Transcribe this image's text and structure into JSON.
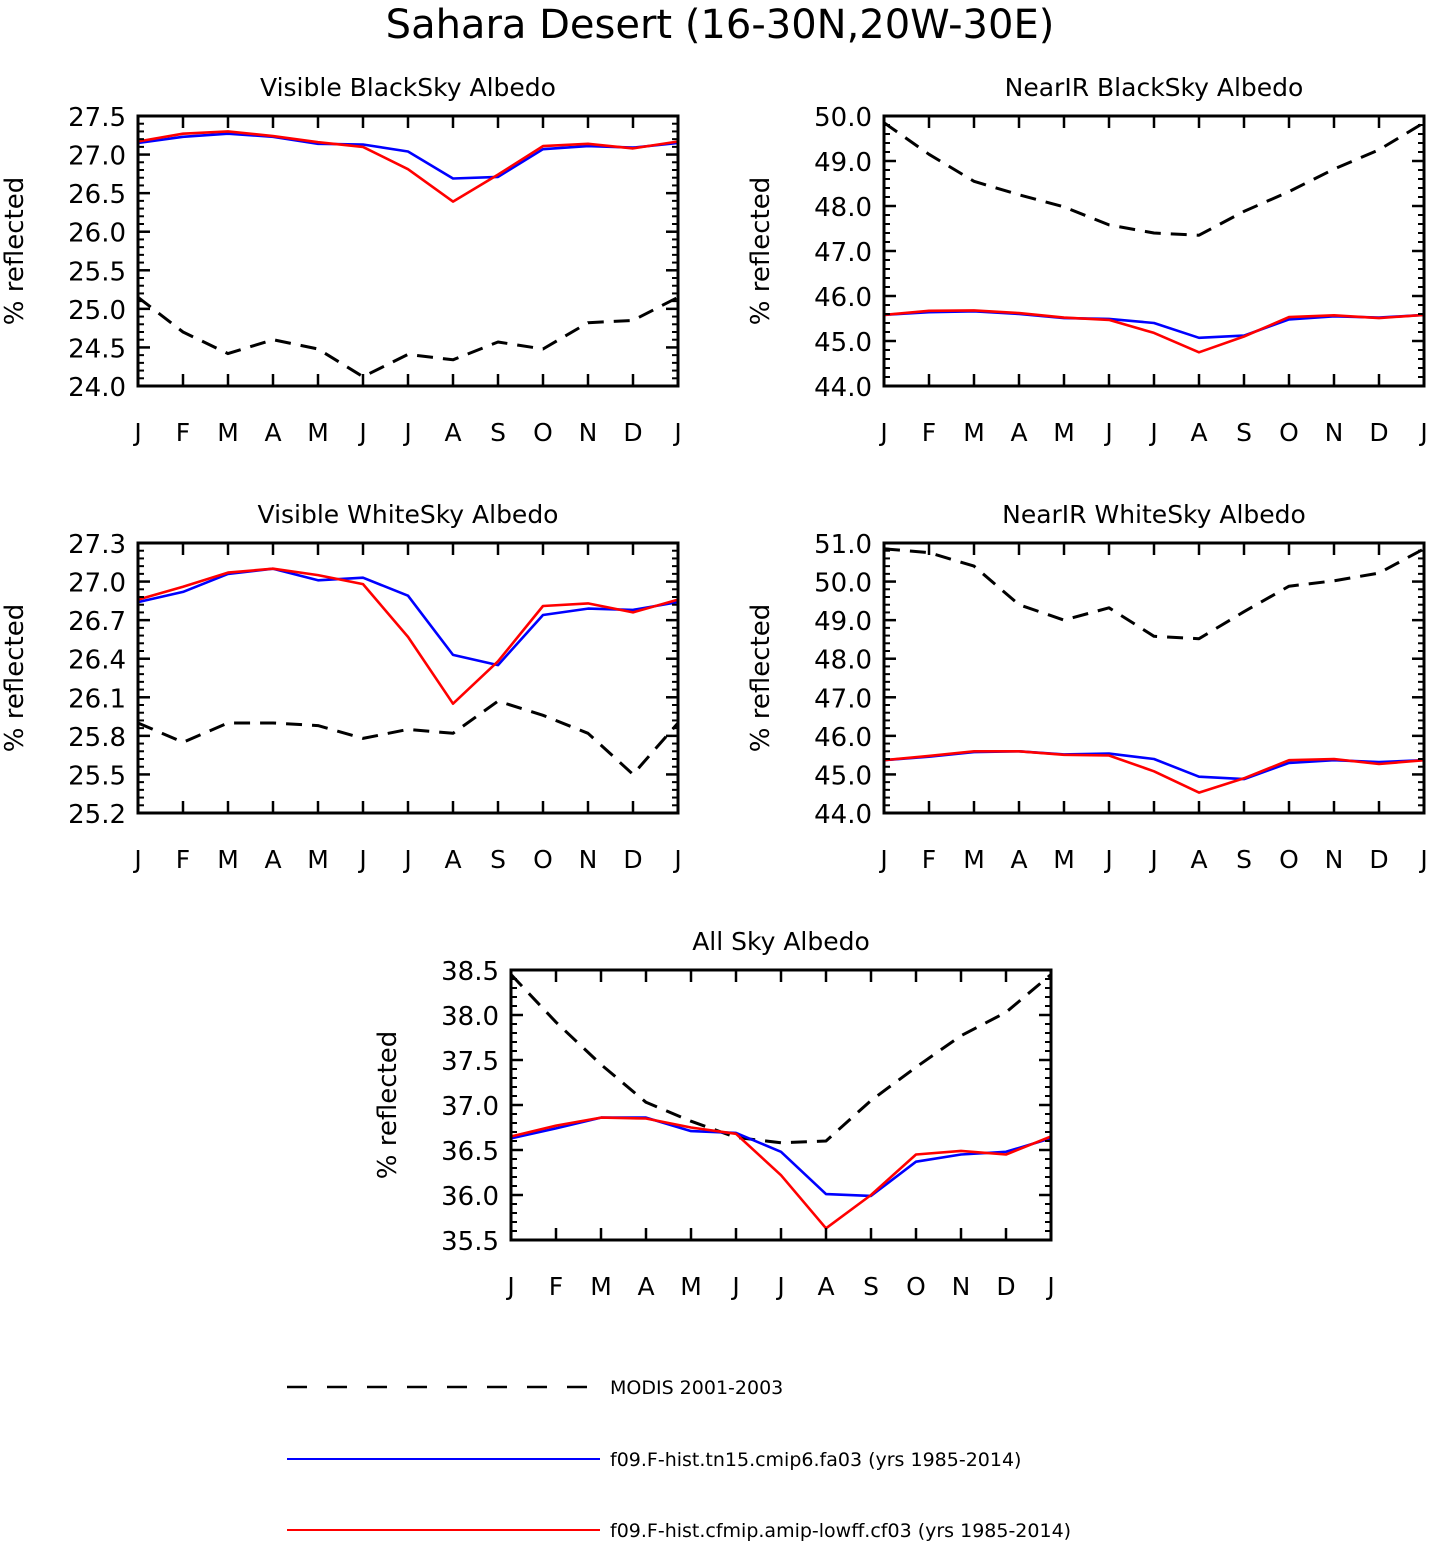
{
  "figure": {
    "title": "Sahara Desert (16-30N,20W-30E)"
  },
  "legend": [
    {
      "label": "MODIS 2001-2003",
      "color": "#000000",
      "dash": true
    },
    {
      "label": "f09.F-hist.tn15.cmip6.fa03 (yrs 1985-2014)",
      "color": "#0000ff",
      "dash": false
    },
    {
      "label": "f09.F-hist.cfmip.amip-lowff.cf03 (yrs 1985-2014)",
      "color": "#ff0000",
      "dash": false
    }
  ],
  "chart_data": [
    {
      "type": "line",
      "title": "Visible BlackSky Albedo",
      "ylabel": "% reflected",
      "categories": [
        "J",
        "F",
        "M",
        "A",
        "M",
        "J",
        "J",
        "A",
        "S",
        "O",
        "N",
        "D",
        "J"
      ],
      "ylim": [
        24.0,
        27.5
      ],
      "yticks": [
        "24.0",
        "24.5",
        "25.0",
        "25.5",
        "26.0",
        "26.5",
        "27.0",
        "27.5"
      ],
      "series": [
        {
          "name": "MODIS 2001-2003",
          "color": "#000000",
          "dash": true,
          "values": [
            25.15,
            24.7,
            24.42,
            24.6,
            24.48,
            24.12,
            24.41,
            24.34,
            24.57,
            24.48,
            24.82,
            24.85,
            25.15
          ]
        },
        {
          "name": "f09.F-hist.tn15.cmip6.fa03 (yrs 1985-2014)",
          "color": "#0000ff",
          "dash": false,
          "values": [
            27.15,
            27.23,
            27.27,
            27.23,
            27.14,
            27.13,
            27.04,
            26.69,
            26.71,
            27.07,
            27.11,
            27.09,
            27.15
          ]
        },
        {
          "name": "f09.F-hist.cfmip.amip-lowff.cf03 (yrs 1985-2014)",
          "color": "#ff0000",
          "dash": false,
          "values": [
            27.17,
            27.27,
            27.3,
            27.24,
            27.16,
            27.1,
            26.81,
            26.39,
            26.74,
            27.11,
            27.14,
            27.08,
            27.17
          ]
        }
      ]
    },
    {
      "type": "line",
      "title": "NearIR BlackSky Albedo",
      "ylabel": "% reflected",
      "categories": [
        "J",
        "F",
        "M",
        "A",
        "M",
        "J",
        "J",
        "A",
        "S",
        "O",
        "N",
        "D",
        "J"
      ],
      "ylim": [
        44.0,
        50.0
      ],
      "yticks": [
        "44.0",
        "45.0",
        "46.0",
        "47.0",
        "48.0",
        "49.0",
        "50.0"
      ],
      "series": [
        {
          "name": "MODIS 2001-2003",
          "color": "#000000",
          "dash": true,
          "values": [
            49.85,
            49.15,
            48.55,
            48.25,
            47.98,
            47.58,
            47.4,
            47.35,
            47.88,
            48.32,
            48.82,
            49.25,
            49.85
          ]
        },
        {
          "name": "f09.F-hist.tn15.cmip6.fa03 (yrs 1985-2014)",
          "color": "#0000ff",
          "dash": false,
          "values": [
            45.58,
            45.64,
            45.66,
            45.6,
            45.51,
            45.49,
            45.4,
            45.07,
            45.12,
            45.48,
            45.55,
            45.52,
            45.58
          ]
        },
        {
          "name": "f09.F-hist.cfmip.amip-lowff.cf03 (yrs 1985-2014)",
          "color": "#ff0000",
          "dash": false,
          "values": [
            45.58,
            45.67,
            45.68,
            45.62,
            45.52,
            45.47,
            45.18,
            44.75,
            45.1,
            45.53,
            45.57,
            45.51,
            45.58
          ]
        }
      ]
    },
    {
      "type": "line",
      "title": "Visible WhiteSky Albedo",
      "ylabel": "% reflected",
      "categories": [
        "J",
        "F",
        "M",
        "A",
        "M",
        "J",
        "J",
        "A",
        "S",
        "O",
        "N",
        "D",
        "J"
      ],
      "ylim": [
        25.2,
        27.3
      ],
      "yticks": [
        "25.2",
        "25.5",
        "25.8",
        "26.1",
        "26.4",
        "26.7",
        "27.0",
        "27.3"
      ],
      "series": [
        {
          "name": "MODIS 2001-2003",
          "color": "#000000",
          "dash": true,
          "values": [
            25.9,
            25.75,
            25.9,
            25.9,
            25.88,
            25.78,
            25.85,
            25.82,
            26.07,
            25.96,
            25.82,
            25.5,
            25.9
          ]
        },
        {
          "name": "f09.F-hist.tn15.cmip6.fa03 (yrs 1985-2014)",
          "color": "#0000ff",
          "dash": false,
          "values": [
            26.84,
            26.92,
            27.06,
            27.1,
            27.01,
            27.03,
            26.89,
            26.43,
            26.35,
            26.74,
            26.79,
            26.78,
            26.84
          ]
        },
        {
          "name": "f09.F-hist.cfmip.amip-lowff.cf03 (yrs 1985-2014)",
          "color": "#ff0000",
          "dash": false,
          "values": [
            26.86,
            26.96,
            27.07,
            27.1,
            27.05,
            26.98,
            26.57,
            26.05,
            26.38,
            26.81,
            26.83,
            26.76,
            26.86
          ]
        }
      ]
    },
    {
      "type": "line",
      "title": "NearIR WhiteSky Albedo",
      "ylabel": "% reflected",
      "categories": [
        "J",
        "F",
        "M",
        "A",
        "M",
        "J",
        "J",
        "A",
        "S",
        "O",
        "N",
        "D",
        "J"
      ],
      "ylim": [
        44.0,
        51.0
      ],
      "yticks": [
        "44.0",
        "45.0",
        "46.0",
        "47.0",
        "48.0",
        "49.0",
        "50.0",
        "51.0"
      ],
      "series": [
        {
          "name": "MODIS 2001-2003",
          "color": "#000000",
          "dash": true,
          "values": [
            50.85,
            50.75,
            50.4,
            49.4,
            49.0,
            49.32,
            48.58,
            48.52,
            49.22,
            49.88,
            50.02,
            50.22,
            50.85
          ]
        },
        {
          "name": "f09.F-hist.tn15.cmip6.fa03 (yrs 1985-2014)",
          "color": "#0000ff",
          "dash": false,
          "values": [
            45.37,
            45.46,
            45.58,
            45.6,
            45.52,
            45.54,
            45.4,
            44.94,
            44.88,
            45.3,
            45.37,
            45.32,
            45.37
          ]
        },
        {
          "name": "f09.F-hist.cfmip.amip-lowff.cf03 (yrs 1985-2014)",
          "color": "#ff0000",
          "dash": false,
          "values": [
            45.37,
            45.48,
            45.6,
            45.6,
            45.51,
            45.49,
            45.08,
            44.53,
            44.9,
            45.37,
            45.4,
            45.27,
            45.37
          ]
        }
      ]
    },
    {
      "type": "line",
      "title": "All Sky Albedo",
      "ylabel": "% reflected",
      "categories": [
        "J",
        "F",
        "M",
        "A",
        "M",
        "J",
        "J",
        "A",
        "S",
        "O",
        "N",
        "D",
        "J"
      ],
      "ylim": [
        35.5,
        38.5
      ],
      "yticks": [
        "35.5",
        "36.0",
        "36.5",
        "37.0",
        "37.5",
        "38.0",
        "38.5"
      ],
      "series": [
        {
          "name": "MODIS 2001-2003",
          "color": "#000000",
          "dash": true,
          "values": [
            38.45,
            37.92,
            37.45,
            37.03,
            36.82,
            36.64,
            36.58,
            36.6,
            37.05,
            37.42,
            37.77,
            38.03,
            38.45
          ]
        },
        {
          "name": "f09.F-hist.tn15.cmip6.fa03 (yrs 1985-2014)",
          "color": "#0000ff",
          "dash": false,
          "values": [
            36.63,
            36.74,
            36.86,
            36.86,
            36.71,
            36.69,
            36.48,
            36.01,
            35.99,
            36.37,
            36.45,
            36.48,
            36.63
          ]
        },
        {
          "name": "f09.F-hist.cfmip.amip-lowff.cf03 (yrs 1985-2014)",
          "color": "#ff0000",
          "dash": false,
          "values": [
            36.65,
            36.77,
            36.86,
            36.85,
            36.75,
            36.68,
            36.22,
            35.63,
            36.0,
            36.45,
            36.49,
            36.45,
            36.65
          ]
        }
      ]
    }
  ]
}
